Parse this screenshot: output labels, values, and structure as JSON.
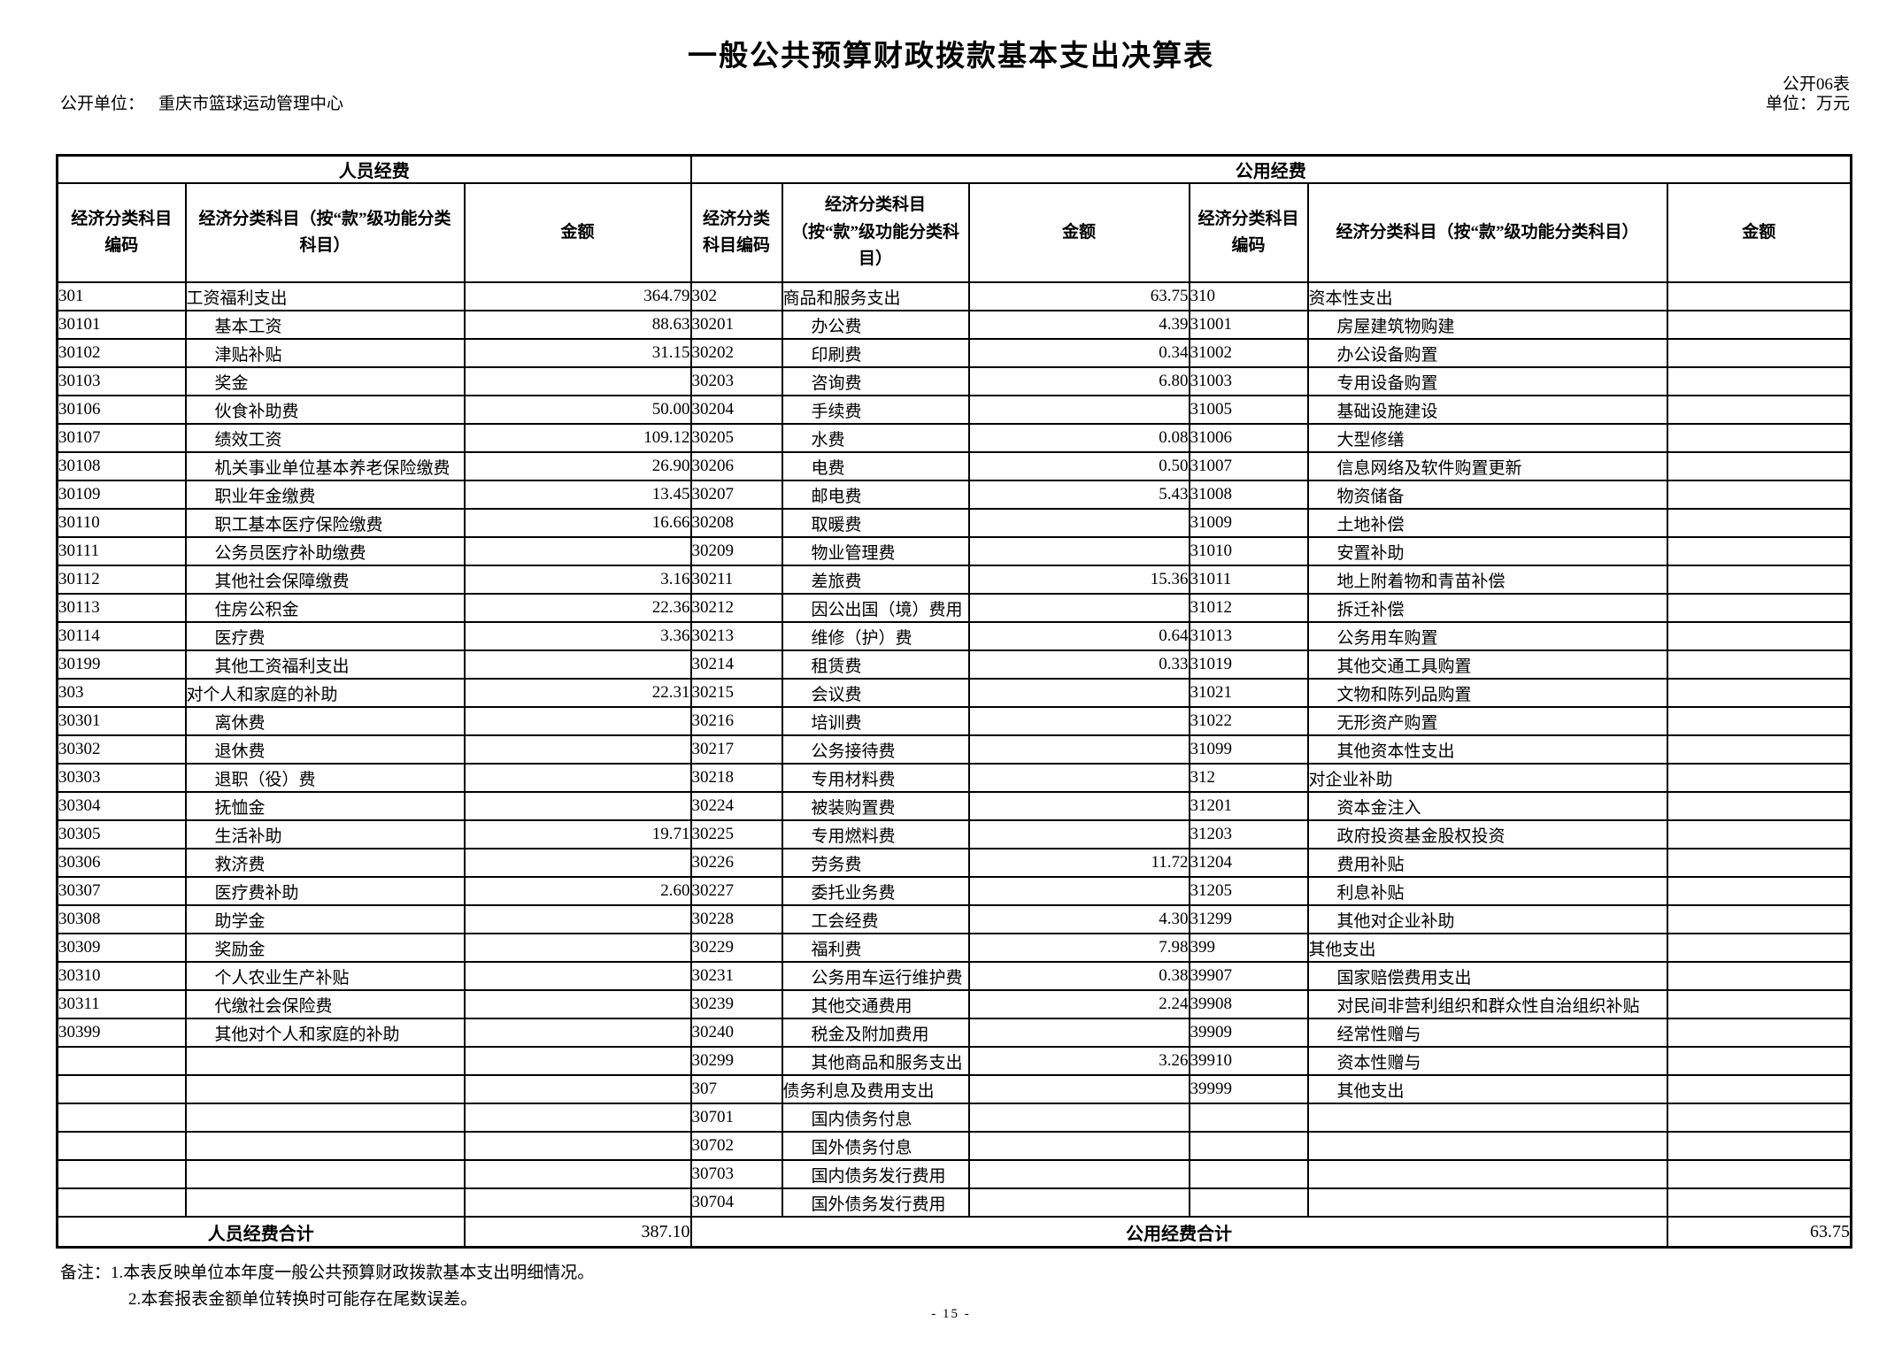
{
  "page": {
    "title": "一般公共预算财政拨款基本支出决算表",
    "table_code": "公开06表",
    "publisher_label": "公开单位：",
    "publisher": "重庆市篮球运动管理中心",
    "unit": "单位：万元",
    "page_number": "- 15 -"
  },
  "table": {
    "bands": [
      "人员经费",
      "公用经费"
    ],
    "column_headers": {
      "code": "经济分类科目编码",
      "subject": "经济分类科目（按“款”级功能分类科目）",
      "amount": "金额"
    },
    "personnel_rows": [
      [
        "301",
        "工资福利支出",
        "364.79",
        0
      ],
      [
        "30101",
        "基本工资",
        "88.63",
        1
      ],
      [
        "30102",
        "津贴补贴",
        "31.15",
        1
      ],
      [
        "30103",
        "奖金",
        "",
        1
      ],
      [
        "30106",
        "伙食补助费",
        "50.00",
        1
      ],
      [
        "30107",
        "绩效工资",
        "109.12",
        1
      ],
      [
        "30108",
        "机关事业单位基本养老保险缴费",
        "26.90",
        1
      ],
      [
        "30109",
        "职业年金缴费",
        "13.45",
        1
      ],
      [
        "30110",
        "职工基本医疗保险缴费",
        "16.66",
        1
      ],
      [
        "30111",
        "公务员医疗补助缴费",
        "",
        1
      ],
      [
        "30112",
        "其他社会保障缴费",
        "3.16",
        1
      ],
      [
        "30113",
        "住房公积金",
        "22.36",
        1
      ],
      [
        "30114",
        "医疗费",
        "3.36",
        1
      ],
      [
        "30199",
        "其他工资福利支出",
        "",
        1
      ],
      [
        "303",
        "对个人和家庭的补助",
        "22.31",
        0
      ],
      [
        "30301",
        "离休费",
        "",
        1
      ],
      [
        "30302",
        "退休费",
        "",
        1
      ],
      [
        "30303",
        "退职（役）费",
        "",
        1
      ],
      [
        "30304",
        "抚恤金",
        "",
        1
      ],
      [
        "30305",
        "生活补助",
        "19.71",
        1
      ],
      [
        "30306",
        "救济费",
        "",
        1
      ],
      [
        "30307",
        "医疗费补助",
        "2.60",
        1
      ],
      [
        "30308",
        "助学金",
        "",
        1
      ],
      [
        "30309",
        "奖励金",
        "",
        1
      ],
      [
        "30310",
        "个人农业生产补贴",
        "",
        1
      ],
      [
        "30311",
        "代缴社会保险费",
        "",
        1
      ],
      [
        "30399",
        "其他对个人和家庭的补助",
        "",
        1
      ],
      [
        "",
        "",
        "",
        0
      ],
      [
        "",
        "",
        "",
        0
      ],
      [
        "",
        "",
        "",
        0
      ],
      [
        "",
        "",
        "",
        0
      ],
      [
        "",
        "",
        "",
        0
      ],
      [
        "",
        "",
        "",
        0
      ]
    ],
    "public_rows_left": [
      [
        "302",
        "商品和服务支出",
        "63.75",
        0
      ],
      [
        "30201",
        "办公费",
        "4.39",
        1
      ],
      [
        "30202",
        "印刷费",
        "0.34",
        1
      ],
      [
        "30203",
        "咨询费",
        "6.80",
        1
      ],
      [
        "30204",
        "手续费",
        "",
        1
      ],
      [
        "30205",
        "水费",
        "0.08",
        1
      ],
      [
        "30206",
        "电费",
        "0.50",
        1
      ],
      [
        "30207",
        "邮电费",
        "5.43",
        1
      ],
      [
        "30208",
        "取暖费",
        "",
        1
      ],
      [
        "30209",
        "物业管理费",
        "",
        1
      ],
      [
        "30211",
        "差旅费",
        "15.36",
        1
      ],
      [
        "30212",
        "因公出国（境）费用",
        "",
        1
      ],
      [
        "30213",
        "维修（护）费",
        "0.64",
        1
      ],
      [
        "30214",
        "租赁费",
        "0.33",
        1
      ],
      [
        "30215",
        "会议费",
        "",
        1
      ],
      [
        "30216",
        "培训费",
        "",
        1
      ],
      [
        "30217",
        "公务接待费",
        "",
        1
      ],
      [
        "30218",
        "专用材料费",
        "",
        1
      ],
      [
        "30224",
        "被装购置费",
        "",
        1
      ],
      [
        "30225",
        "专用燃料费",
        "",
        1
      ],
      [
        "30226",
        "劳务费",
        "11.72",
        1
      ],
      [
        "30227",
        "委托业务费",
        "",
        1
      ],
      [
        "30228",
        "工会经费",
        "4.30",
        1
      ],
      [
        "30229",
        "福利费",
        "7.98",
        1
      ],
      [
        "30231",
        "公务用车运行维护费",
        "0.38",
        1
      ],
      [
        "30239",
        "其他交通费用",
        "2.24",
        1
      ],
      [
        "30240",
        "税金及附加费用",
        "",
        1
      ],
      [
        "30299",
        "其他商品和服务支出",
        "3.26",
        1
      ],
      [
        "307",
        "债务利息及费用支出",
        "",
        0
      ],
      [
        "30701",
        "国内债务付息",
        "",
        1
      ],
      [
        "30702",
        "国外债务付息",
        "",
        1
      ],
      [
        "30703",
        "国内债务发行费用",
        "",
        1
      ],
      [
        "30704",
        "国外债务发行费用",
        "",
        1
      ]
    ],
    "public_rows_right": [
      [
        "310",
        "资本性支出",
        "",
        0
      ],
      [
        "31001",
        "房屋建筑物购建",
        "",
        1
      ],
      [
        "31002",
        "办公设备购置",
        "",
        1
      ],
      [
        "31003",
        "专用设备购置",
        "",
        1
      ],
      [
        "31005",
        "基础设施建设",
        "",
        1
      ],
      [
        "31006",
        "大型修缮",
        "",
        1
      ],
      [
        "31007",
        "信息网络及软件购置更新",
        "",
        1
      ],
      [
        "31008",
        "物资储备",
        "",
        1
      ],
      [
        "31009",
        "土地补偿",
        "",
        1
      ],
      [
        "31010",
        "安置补助",
        "",
        1
      ],
      [
        "31011",
        "地上附着物和青苗补偿",
        "",
        1
      ],
      [
        "31012",
        "拆迁补偿",
        "",
        1
      ],
      [
        "31013",
        "公务用车购置",
        "",
        1
      ],
      [
        "31019",
        "其他交通工具购置",
        "",
        1
      ],
      [
        "31021",
        "文物和陈列品购置",
        "",
        1
      ],
      [
        "31022",
        "无形资产购置",
        "",
        1
      ],
      [
        "31099",
        "其他资本性支出",
        "",
        1
      ],
      [
        "312",
        "对企业补助",
        "",
        0
      ],
      [
        "31201",
        "资本金注入",
        "",
        1
      ],
      [
        "31203",
        "政府投资基金股权投资",
        "",
        1
      ],
      [
        "31204",
        "费用补贴",
        "",
        1
      ],
      [
        "31205",
        "利息补贴",
        "",
        1
      ],
      [
        "31299",
        "其他对企业补助",
        "",
        1
      ],
      [
        "399",
        "其他支出",
        "",
        0
      ],
      [
        "39907",
        "国家赔偿费用支出",
        "",
        1
      ],
      [
        "39908",
        "对民间非营利组织和群众性自治组织补贴",
        "",
        1
      ],
      [
        "39909",
        "经常性赠与",
        "",
        1
      ],
      [
        "39910",
        "资本性赠与",
        "",
        1
      ],
      [
        "39999",
        "其他支出",
        "",
        1
      ],
      [
        "",
        "",
        "",
        0
      ],
      [
        "",
        "",
        "",
        0
      ],
      [
        "",
        "",
        "",
        0
      ],
      [
        "",
        "",
        "",
        0
      ]
    ],
    "totals": {
      "personnel_label": "人员经费合计",
      "personnel_amount": "387.10",
      "public_label": "公用经费合计",
      "public_amount": "63.75"
    }
  },
  "notes": [
    "备注：1.本表反映单位本年度一般公共预算财政拨款基本支出明细情况。",
    "2.本套报表金额单位转换时可能存在尾数误差。"
  ]
}
